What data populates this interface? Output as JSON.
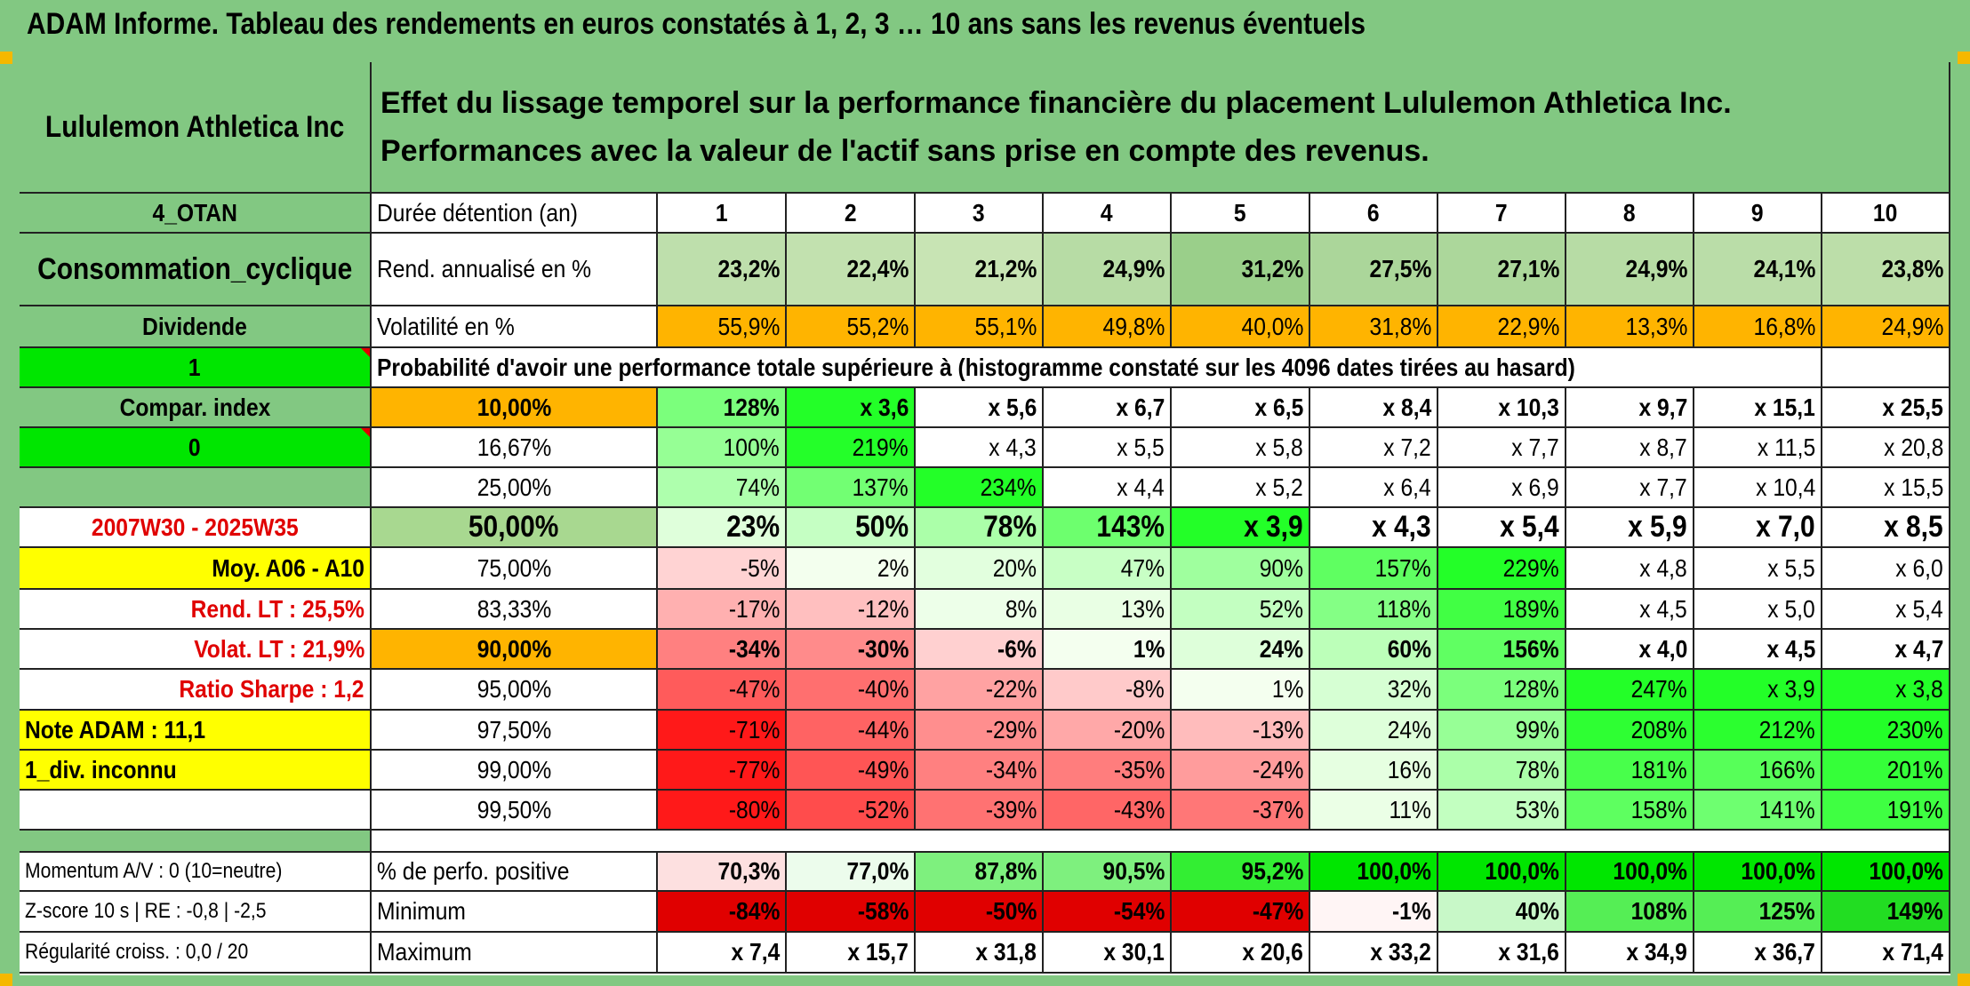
{
  "title": "ADAM Informe. Tableau des rendements en euros constatés à 1, 2, 3 … 10 ans sans les revenus éventuels",
  "colors": {
    "header_green": "#82c882",
    "bright_green": "#00e600",
    "orange": "#ffb400",
    "yellow": "#ffff00",
    "red": "#e00000"
  },
  "left": {
    "company": "Lululemon Athletica Inc",
    "code": "4_OTAN",
    "sector": "Consommation_cyclique",
    "dividend_label": "Dividende",
    "dividend_value": "1",
    "compar_index": "Compar. index",
    "compar_value": "0",
    "period": "2007W30 - 2025W35",
    "avg": "Moy. A06 - A10",
    "rend_lt": "Rend. LT :   25,5%",
    "volat_lt": "Volat. LT :   21,9%",
    "sharpe": "Ratio Sharpe :   1,2",
    "note": "Note ADAM : 11,1",
    "div_unknown": "1_div. inconnu",
    "momentum": "Momentum A/V : 0 (10=neutre)",
    "zscore": "Z-score 10 s | RE : -0,8 | -2,5",
    "regularity": "Régularité croiss. : 0,0 / 20"
  },
  "description": "Effet du lissage temporel sur la performance financière du placement Lululemon Athletica Inc. Performances avec la valeur de l'actif sans prise en compte des revenus.",
  "duration_label": "Durée détention (an)",
  "years": [
    "1",
    "2",
    "3",
    "4",
    "5",
    "6",
    "7",
    "8",
    "9",
    "10"
  ],
  "rend_label": "Rend. annualisé en %",
  "rend": [
    "23,2%",
    "22,4%",
    "21,2%",
    "24,9%",
    "31,2%",
    "27,5%",
    "27,1%",
    "24,9%",
    "24,1%",
    "23,8%"
  ],
  "vol_label": "Volatilité en %",
  "vol": [
    "55,9%",
    "55,2%",
    "55,1%",
    "49,8%",
    "40,0%",
    "31,8%",
    "22,9%",
    "13,3%",
    "16,8%",
    "24,9%"
  ],
  "prob_title": "Probabilité d'avoir une performance totale supérieure à (histogramme constaté sur les 4096 dates tirées au hasard)",
  "quantiles": [
    {
      "p": "10,00%",
      "v": [
        "128%",
        "x 3,6",
        "x 5,6",
        "x 6,7",
        "x 6,5",
        "x 8,4",
        "x 10,3",
        "x 9,7",
        "x 15,1",
        "x 25,5"
      ]
    },
    {
      "p": "16,67%",
      "v": [
        "100%",
        "219%",
        "x 4,3",
        "x 5,5",
        "x 5,8",
        "x 7,2",
        "x 7,7",
        "x 8,7",
        "x 11,5",
        "x 20,8"
      ]
    },
    {
      "p": "25,00%",
      "v": [
        "74%",
        "137%",
        "234%",
        "x 4,4",
        "x 5,2",
        "x 6,4",
        "x 6,9",
        "x 7,7",
        "x 10,4",
        "x 15,5"
      ]
    },
    {
      "p": "50,00%",
      "v": [
        "23%",
        "50%",
        "78%",
        "143%",
        "x 3,9",
        "x 4,3",
        "x 5,4",
        "x 5,9",
        "x 7,0",
        "x 8,5"
      ]
    },
    {
      "p": "75,00%",
      "v": [
        "-5%",
        "2%",
        "20%",
        "47%",
        "90%",
        "157%",
        "229%",
        "x 4,8",
        "x 5,5",
        "x 6,0"
      ]
    },
    {
      "p": "83,33%",
      "v": [
        "-17%",
        "-12%",
        "8%",
        "13%",
        "52%",
        "118%",
        "189%",
        "x 4,5",
        "x 5,0",
        "x 5,4"
      ]
    },
    {
      "p": "90,00%",
      "v": [
        "-34%",
        "-30%",
        "-6%",
        "1%",
        "24%",
        "60%",
        "156%",
        "x 4,0",
        "x 4,5",
        "x 4,7"
      ]
    },
    {
      "p": "95,00%",
      "v": [
        "-47%",
        "-40%",
        "-22%",
        "-8%",
        "1%",
        "32%",
        "128%",
        "247%",
        "x 3,9",
        "x 3,8"
      ]
    },
    {
      "p": "97,50%",
      "v": [
        "-71%",
        "-44%",
        "-29%",
        "-20%",
        "-13%",
        "24%",
        "99%",
        "208%",
        "212%",
        "230%"
      ]
    },
    {
      "p": "99,00%",
      "v": [
        "-77%",
        "-49%",
        "-34%",
        "-35%",
        "-24%",
        "16%",
        "78%",
        "181%",
        "166%",
        "201%"
      ]
    },
    {
      "p": "99,50%",
      "v": [
        "-80%",
        "-52%",
        "-39%",
        "-43%",
        "-37%",
        "11%",
        "53%",
        "158%",
        "141%",
        "191%"
      ]
    }
  ],
  "pos_label": "% de perfo. positive",
  "pos": [
    "70,3%",
    "77,0%",
    "87,8%",
    "90,5%",
    "95,2%",
    "100,0%",
    "100,0%",
    "100,0%",
    "100,0%",
    "100,0%"
  ],
  "min_label": "Minimum",
  "min": [
    "-84%",
    "-58%",
    "-50%",
    "-54%",
    "-47%",
    "-1%",
    "40%",
    "108%",
    "125%",
    "149%"
  ],
  "max_label": "Maximum",
  "max": [
    "x 7,4",
    "x 15,7",
    "x 31,8",
    "x 30,1",
    "x 20,6",
    "x 33,2",
    "x 31,6",
    "x 34,9",
    "x 36,7",
    "x 71,4"
  ]
}
